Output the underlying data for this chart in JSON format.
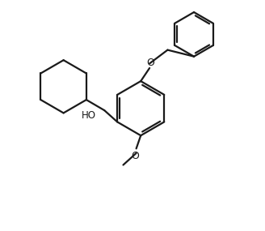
{
  "bg_color": "#ffffff",
  "line_color": "#1a1a1a",
  "line_width": 1.6,
  "font_size": 8.5,
  "fig_width": 3.28,
  "fig_height": 2.85,
  "dpi": 100,
  "xlim": [
    0,
    10
  ],
  "ylim": [
    0,
    9
  ]
}
